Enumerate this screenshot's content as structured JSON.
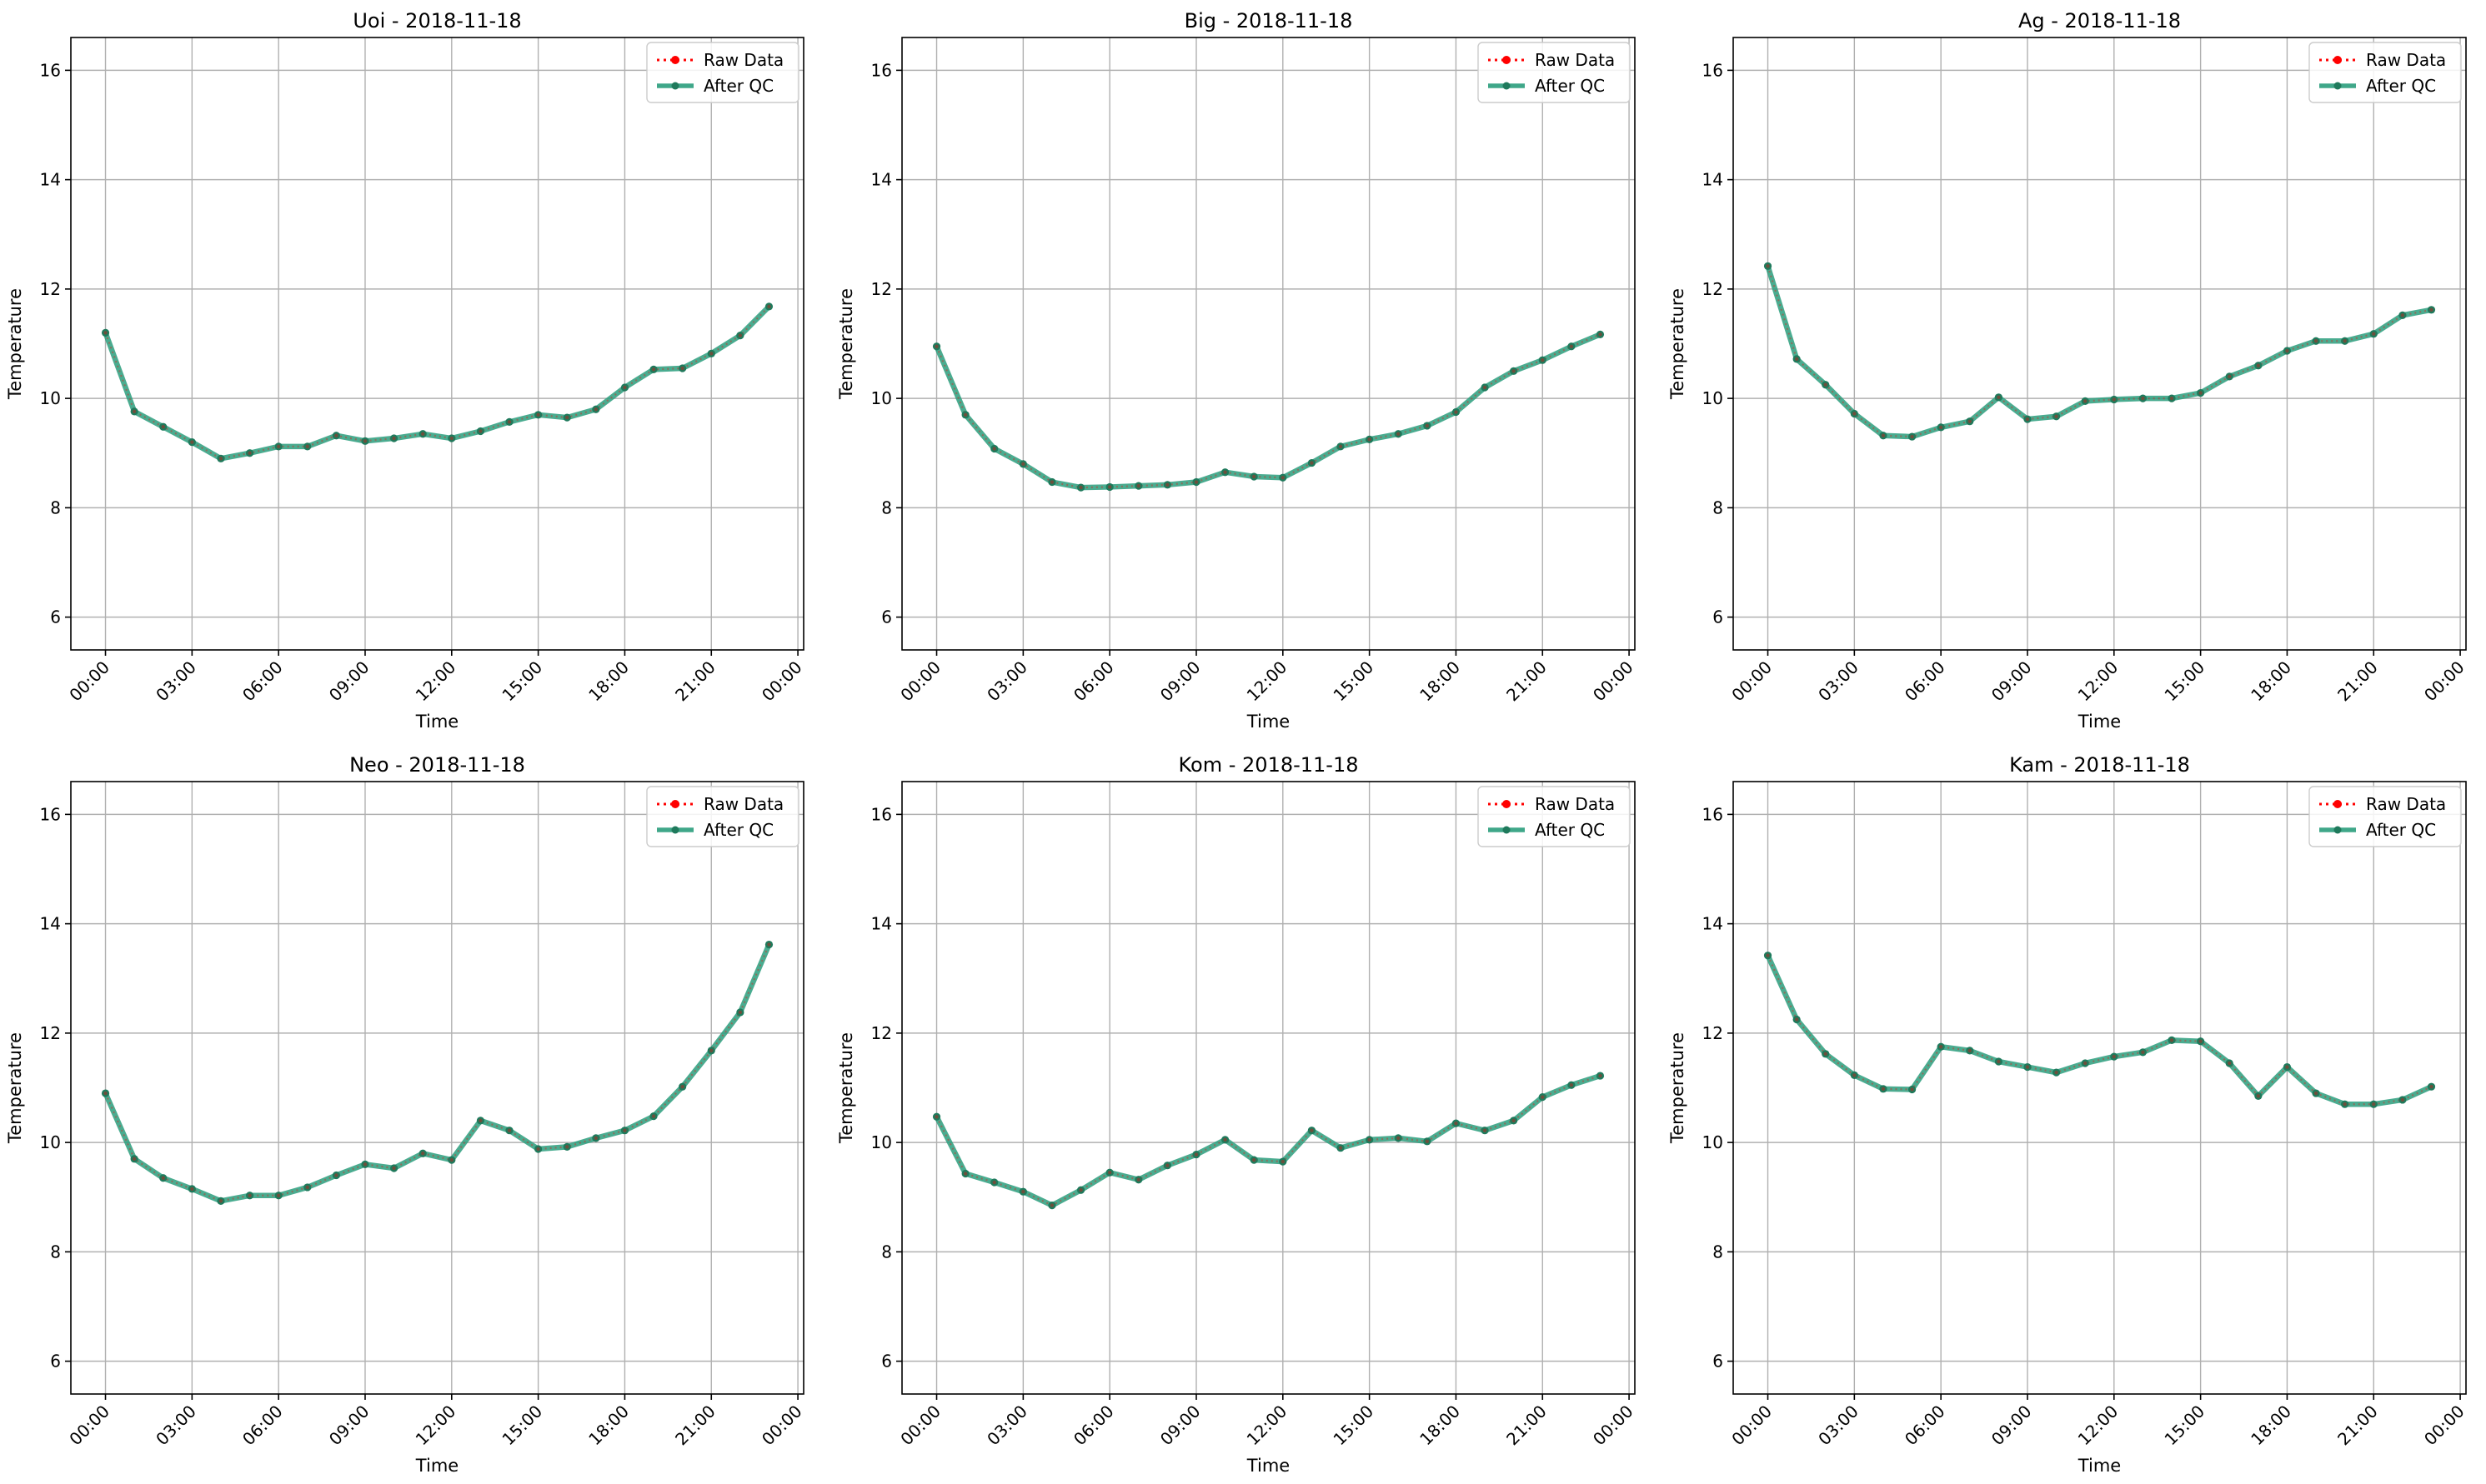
{
  "figure": {
    "colors": {
      "raw": "#ff0000",
      "qc": "#2a9d7c",
      "qc_marker": "#1f7a5c",
      "grid": "#b0b0b0",
      "axes": "#000000"
    }
  },
  "chart_data": [
    {
      "type": "line",
      "title": "Uoi - 2018-11-18",
      "xlabel": "Time",
      "ylabel": "Temperature",
      "x": [
        "00:00",
        "01:00",
        "02:00",
        "03:00",
        "04:00",
        "05:00",
        "06:00",
        "07:00",
        "08:00",
        "09:00",
        "10:00",
        "11:00",
        "12:00",
        "13:00",
        "14:00",
        "15:00",
        "16:00",
        "17:00",
        "18:00",
        "19:00",
        "20:00",
        "21:00",
        "22:00",
        "23:00"
      ],
      "xticks": [
        "00:00",
        "03:00",
        "06:00",
        "09:00",
        "12:00",
        "15:00",
        "18:00",
        "21:00",
        "00:00"
      ],
      "yticks": [
        6,
        8,
        10,
        12,
        14,
        16
      ],
      "xlim_hours": [
        -1.2,
        24.2
      ],
      "ylim": [
        5.4,
        16.6
      ],
      "grid": true,
      "legend": "top-right",
      "series": [
        {
          "name": "Raw Data",
          "style": "dotted",
          "values": [
            11.2,
            9.76,
            9.48,
            9.2,
            8.9,
            9.0,
            9.12,
            9.12,
            9.32,
            9.22,
            9.27,
            9.35,
            9.27,
            9.4,
            9.57,
            9.7,
            9.65,
            9.8,
            10.2,
            10.53,
            10.55,
            10.82,
            11.15,
            11.68
          ]
        },
        {
          "name": "After QC",
          "style": "solid",
          "values": [
            11.2,
            9.76,
            9.48,
            9.2,
            8.9,
            9.0,
            9.12,
            9.12,
            9.32,
            9.22,
            9.27,
            9.35,
            9.27,
            9.4,
            9.57,
            9.7,
            9.65,
            9.8,
            10.2,
            10.53,
            10.55,
            10.82,
            11.15,
            11.68
          ]
        }
      ]
    },
    {
      "type": "line",
      "title": "Big - 2018-11-18",
      "xlabel": "Time",
      "ylabel": "Temperature",
      "x": [
        "00:00",
        "01:00",
        "02:00",
        "03:00",
        "04:00",
        "05:00",
        "06:00",
        "07:00",
        "08:00",
        "09:00",
        "10:00",
        "11:00",
        "12:00",
        "13:00",
        "14:00",
        "15:00",
        "16:00",
        "17:00",
        "18:00",
        "19:00",
        "20:00",
        "21:00",
        "22:00",
        "23:00"
      ],
      "xticks": [
        "00:00",
        "03:00",
        "06:00",
        "09:00",
        "12:00",
        "15:00",
        "18:00",
        "21:00",
        "00:00"
      ],
      "yticks": [
        6,
        8,
        10,
        12,
        14,
        16
      ],
      "xlim_hours": [
        -1.2,
        24.2
      ],
      "ylim": [
        5.4,
        16.6
      ],
      "grid": true,
      "legend": "top-right",
      "series": [
        {
          "name": "Raw Data",
          "style": "dotted",
          "values": [
            10.95,
            9.7,
            9.08,
            8.8,
            8.47,
            8.37,
            8.38,
            8.4,
            8.42,
            8.47,
            8.65,
            8.57,
            8.55,
            8.82,
            9.12,
            9.25,
            9.35,
            9.5,
            9.75,
            10.2,
            10.5,
            10.7,
            10.95,
            11.17
          ]
        },
        {
          "name": "After QC",
          "style": "solid",
          "values": [
            10.95,
            9.7,
            9.08,
            8.8,
            8.47,
            8.37,
            8.38,
            8.4,
            8.42,
            8.47,
            8.65,
            8.57,
            8.55,
            8.82,
            9.12,
            9.25,
            9.35,
            9.5,
            9.75,
            10.2,
            10.5,
            10.7,
            10.95,
            11.17
          ]
        }
      ]
    },
    {
      "type": "line",
      "title": "Ag - 2018-11-18",
      "xlabel": "Time",
      "ylabel": "Temperature",
      "x": [
        "00:00",
        "01:00",
        "02:00",
        "03:00",
        "04:00",
        "05:00",
        "06:00",
        "07:00",
        "08:00",
        "09:00",
        "10:00",
        "11:00",
        "12:00",
        "13:00",
        "14:00",
        "15:00",
        "16:00",
        "17:00",
        "18:00",
        "19:00",
        "20:00",
        "21:00",
        "22:00",
        "23:00"
      ],
      "xticks": [
        "00:00",
        "03:00",
        "06:00",
        "09:00",
        "12:00",
        "15:00",
        "18:00",
        "21:00",
        "00:00"
      ],
      "yticks": [
        6,
        8,
        10,
        12,
        14,
        16
      ],
      "xlim_hours": [
        -1.2,
        24.2
      ],
      "ylim": [
        5.4,
        16.6
      ],
      "grid": true,
      "legend": "top-right",
      "series": [
        {
          "name": "Raw Data",
          "style": "dotted",
          "values": [
            12.42,
            10.72,
            10.25,
            9.72,
            9.32,
            9.3,
            9.47,
            9.58,
            10.02,
            9.62,
            9.67,
            9.95,
            9.98,
            10.0,
            10.0,
            10.1,
            10.4,
            10.6,
            10.87,
            11.05,
            11.05,
            11.18,
            11.52,
            11.62
          ]
        },
        {
          "name": "After QC",
          "style": "solid",
          "values": [
            12.42,
            10.72,
            10.25,
            9.72,
            9.32,
            9.3,
            9.47,
            9.58,
            10.02,
            9.62,
            9.67,
            9.95,
            9.98,
            10.0,
            10.0,
            10.1,
            10.4,
            10.6,
            10.87,
            11.05,
            11.05,
            11.18,
            11.52,
            11.62
          ]
        }
      ]
    },
    {
      "type": "line",
      "title": "Neo - 2018-11-18",
      "xlabel": "Time",
      "ylabel": "Temperature",
      "x": [
        "00:00",
        "01:00",
        "02:00",
        "03:00",
        "04:00",
        "05:00",
        "06:00",
        "07:00",
        "08:00",
        "09:00",
        "10:00",
        "11:00",
        "12:00",
        "13:00",
        "14:00",
        "15:00",
        "16:00",
        "17:00",
        "18:00",
        "19:00",
        "20:00",
        "21:00",
        "22:00",
        "23:00"
      ],
      "xticks": [
        "00:00",
        "03:00",
        "06:00",
        "09:00",
        "12:00",
        "15:00",
        "18:00",
        "21:00",
        "00:00"
      ],
      "yticks": [
        6,
        8,
        10,
        12,
        14,
        16
      ],
      "xlim_hours": [
        -1.2,
        24.2
      ],
      "ylim": [
        5.4,
        16.6
      ],
      "grid": true,
      "legend": "top-right",
      "series": [
        {
          "name": "Raw Data",
          "style": "dotted",
          "values": [
            10.9,
            9.7,
            9.35,
            9.15,
            8.93,
            9.03,
            9.03,
            9.18,
            9.4,
            9.6,
            9.53,
            9.8,
            9.68,
            10.4,
            10.22,
            9.88,
            9.92,
            10.08,
            10.22,
            10.48,
            11.02,
            11.68,
            12.38,
            13.62
          ]
        },
        {
          "name": "After QC",
          "style": "solid",
          "values": [
            10.9,
            9.7,
            9.35,
            9.15,
            8.93,
            9.03,
            9.03,
            9.18,
            9.4,
            9.6,
            9.53,
            9.8,
            9.68,
            10.4,
            10.22,
            9.88,
            9.92,
            10.08,
            10.22,
            10.48,
            11.02,
            11.68,
            12.38,
            13.62
          ]
        }
      ]
    },
    {
      "type": "line",
      "title": "Kom - 2018-11-18",
      "xlabel": "Time",
      "ylabel": "Temperature",
      "x": [
        "00:00",
        "01:00",
        "02:00",
        "03:00",
        "04:00",
        "05:00",
        "06:00",
        "07:00",
        "08:00",
        "09:00",
        "10:00",
        "11:00",
        "12:00",
        "13:00",
        "14:00",
        "15:00",
        "16:00",
        "17:00",
        "18:00",
        "19:00",
        "20:00",
        "21:00",
        "22:00",
        "23:00"
      ],
      "xticks": [
        "00:00",
        "03:00",
        "06:00",
        "09:00",
        "12:00",
        "15:00",
        "18:00",
        "21:00",
        "00:00"
      ],
      "yticks": [
        6,
        8,
        10,
        12,
        14,
        16
      ],
      "xlim_hours": [
        -1.2,
        24.2
      ],
      "ylim": [
        5.4,
        16.6
      ],
      "grid": true,
      "legend": "top-right",
      "series": [
        {
          "name": "Raw Data",
          "style": "dotted",
          "values": [
            10.47,
            9.43,
            9.27,
            9.1,
            8.85,
            9.13,
            9.45,
            9.32,
            9.58,
            9.78,
            10.05,
            9.68,
            9.65,
            10.22,
            9.9,
            10.05,
            10.08,
            10.02,
            10.35,
            10.22,
            10.4,
            10.83,
            11.05,
            11.22
          ]
        },
        {
          "name": "After QC",
          "style": "solid",
          "values": [
            10.47,
            9.43,
            9.27,
            9.1,
            8.85,
            9.13,
            9.45,
            9.32,
            9.58,
            9.78,
            10.05,
            9.68,
            9.65,
            10.22,
            9.9,
            10.05,
            10.08,
            10.02,
            10.35,
            10.22,
            10.4,
            10.83,
            11.05,
            11.22
          ]
        }
      ]
    },
    {
      "type": "line",
      "title": "Kam - 2018-11-18",
      "xlabel": "Time",
      "ylabel": "Temperature",
      "x": [
        "00:00",
        "01:00",
        "02:00",
        "03:00",
        "04:00",
        "05:00",
        "06:00",
        "07:00",
        "08:00",
        "09:00",
        "10:00",
        "11:00",
        "12:00",
        "13:00",
        "14:00",
        "15:00",
        "16:00",
        "17:00",
        "18:00",
        "19:00",
        "20:00",
        "21:00",
        "22:00",
        "23:00"
      ],
      "xticks": [
        "00:00",
        "03:00",
        "06:00",
        "09:00",
        "12:00",
        "15:00",
        "18:00",
        "21:00",
        "00:00"
      ],
      "yticks": [
        6,
        8,
        10,
        12,
        14,
        16
      ],
      "xlim_hours": [
        -1.2,
        24.2
      ],
      "ylim": [
        5.4,
        16.6
      ],
      "grid": true,
      "legend": "top-right",
      "series": [
        {
          "name": "Raw Data",
          "style": "dotted",
          "values": [
            13.42,
            12.25,
            11.62,
            11.23,
            10.98,
            10.97,
            11.75,
            11.68,
            11.48,
            11.38,
            11.28,
            11.45,
            11.57,
            11.65,
            11.87,
            11.85,
            11.45,
            10.85,
            11.38,
            10.9,
            10.7,
            10.7,
            10.78,
            11.02
          ]
        },
        {
          "name": "After QC",
          "style": "solid",
          "values": [
            13.42,
            12.25,
            11.62,
            11.23,
            10.98,
            10.97,
            11.75,
            11.68,
            11.48,
            11.38,
            11.28,
            11.45,
            11.57,
            11.65,
            11.87,
            11.85,
            11.45,
            10.85,
            11.38,
            10.9,
            10.7,
            10.7,
            10.78,
            11.02
          ]
        }
      ]
    }
  ]
}
